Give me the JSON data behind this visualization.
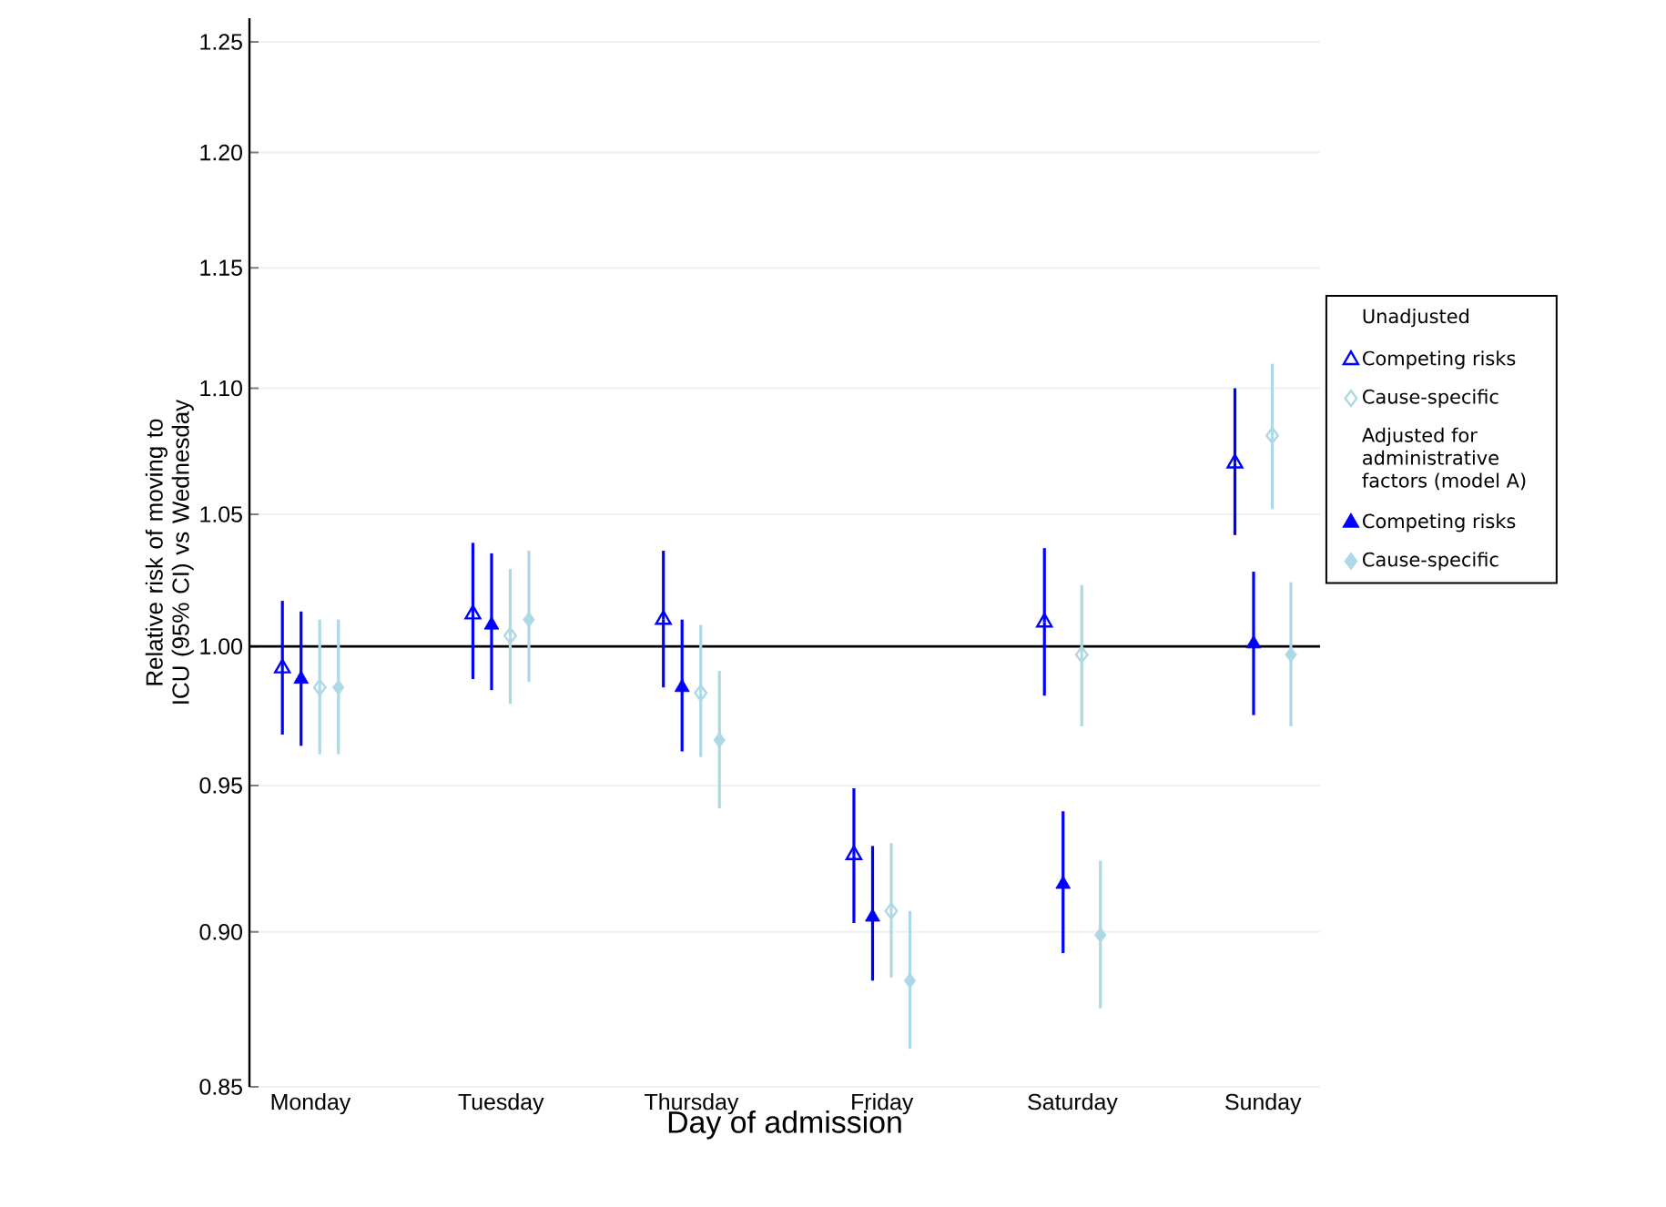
{
  "chart_data": {
    "type": "scatter",
    "xlabel": "Day of admission",
    "ylabel": "Relative risk of moving to ICU (95% CI) vs Wednesday",
    "categories": [
      "Monday",
      "Tuesday",
      "Thursday",
      "Friday",
      "Saturday",
      "Sunday"
    ],
    "series": [
      {
        "name": "Competing risks",
        "color": "#0000ff",
        "marker": "triangle",
        "values": [
          0.992,
          1.012,
          1.01,
          0.926,
          1.009,
          1.07
        ],
        "errors": [
          [
            0.968,
            1.017
          ],
          [
            0.988,
            1.039
          ],
          [
            0.985,
            1.036
          ],
          [
            0.903,
            0.949
          ],
          [
            0.982,
            1.037
          ],
          [
            1.042,
            1.1
          ]
        ]
      },
      {
        "name": "Cause-specific",
        "color": "#add8e6",
        "marker": "diamond",
        "values": [
          0.985,
          1.004,
          0.983,
          0.907,
          0.997,
          1.081
        ],
        "errors": [
          [
            0.961,
            1.01
          ],
          [
            0.979,
            1.029
          ],
          [
            0.96,
            1.008
          ],
          [
            0.885,
            0.93
          ],
          [
            0.971,
            1.023
          ],
          [
            1.052,
            1.11
          ]
        ]
      },
      {
        "name": "Competing risks",
        "color": "#0000ff",
        "marker": "triangle",
        "values": [
          0.988,
          1.008,
          0.985,
          0.905,
          0.916,
          1.001
        ],
        "errors": [
          [
            0.964,
            1.013
          ],
          [
            0.984,
            1.035
          ],
          [
            0.962,
            1.01
          ],
          [
            0.884,
            0.929
          ],
          [
            0.893,
            0.941
          ],
          [
            0.975,
            1.028
          ]
        ]
      },
      {
        "name": "Cause-specific",
        "color": "#add8e6",
        "marker": "diamond",
        "values": [
          0.985,
          1.01,
          0.966,
          0.884,
          0.899,
          0.997
        ],
        "errors": [
          [
            0.961,
            1.01
          ],
          [
            0.987,
            1.036
          ],
          [
            0.942,
            0.991
          ],
          [
            0.862,
            0.907
          ],
          [
            0.875,
            0.924
          ],
          [
            0.971,
            1.024
          ]
        ]
      }
    ],
    "annotations": [
      "Unadjusted",
      "Adjusted for administrative factors (model A)"
    ],
    "log": "y",
    "ylim": [
      0.85,
      1.261
    ],
    "yticks": [
      {
        "value": 0.85,
        "label": "0.85"
      },
      {
        "value": 0.9,
        "label": "0.90"
      },
      {
        "value": 0.95,
        "label": "0.95"
      },
      {
        "value": 1.0,
        "label": "1.00"
      },
      {
        "value": 1.05,
        "label": "1.05"
      },
      {
        "value": 1.1,
        "label": "1.10"
      },
      {
        "value": 1.15,
        "label": "1.15"
      },
      {
        "value": 1.2,
        "label": "1.20"
      },
      {
        "value": 1.25,
        "label": "1.25"
      }
    ],
    "ref_lines": [
      {
        "axis": "y",
        "value": 1.0,
        "color": "#000000"
      }
    ],
    "grid": "y",
    "legend": "right"
  }
}
